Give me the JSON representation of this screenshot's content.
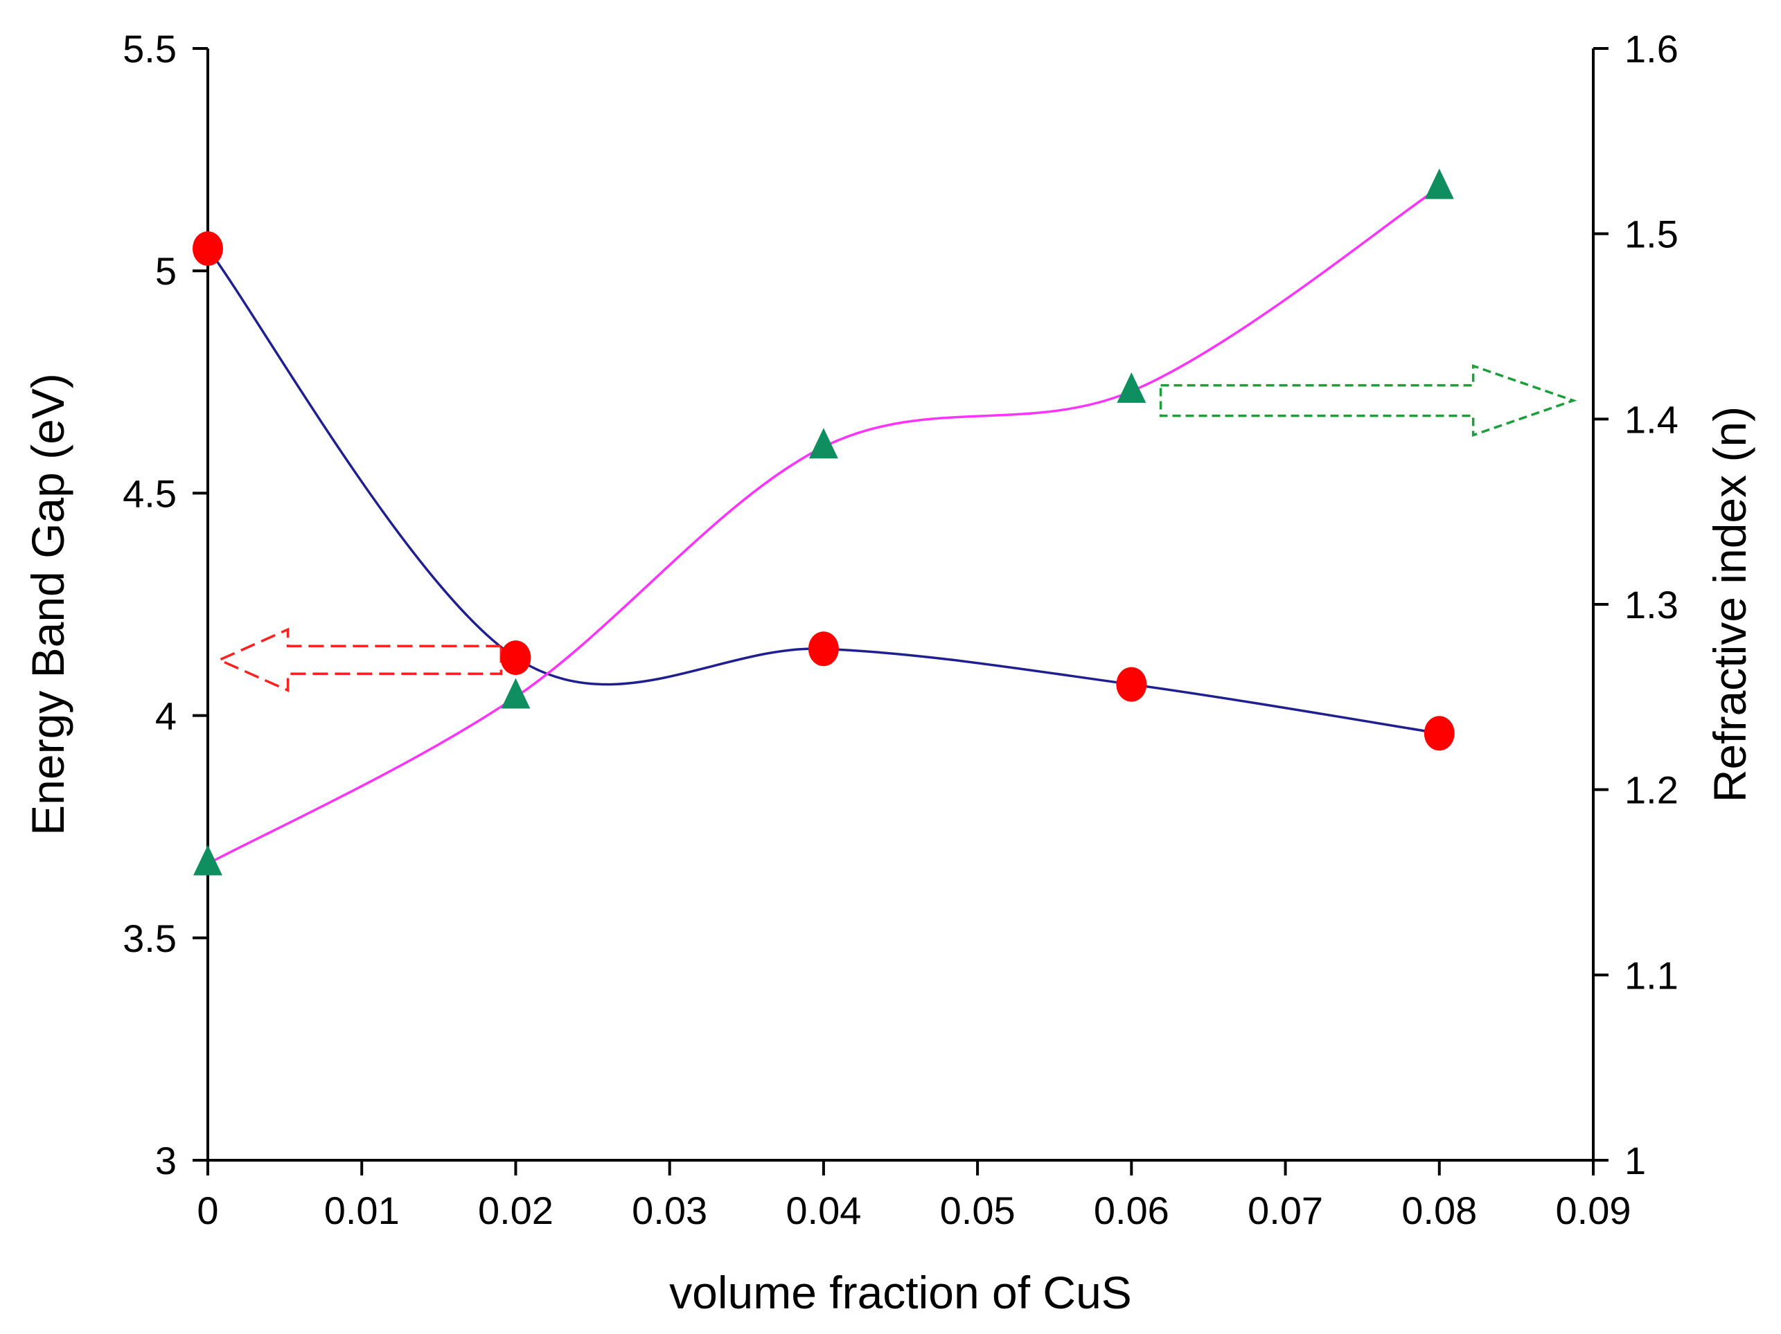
{
  "chart_data": {
    "type": "line",
    "title": "",
    "xlabel": "volume fraction of CuS",
    "ylabel_left": "Energy Band Gap (eV)",
    "ylabel_right": "Refractive index (n)",
    "xlim": [
      0,
      0.09
    ],
    "ylim_left": [
      3,
      5.5
    ],
    "ylim_right": [
      1,
      1.6
    ],
    "x_ticks": [
      0,
      0.01,
      0.02,
      0.03,
      0.04,
      0.05,
      0.06,
      0.07,
      0.08,
      0.09
    ],
    "x_tick_labels": [
      "0",
      "0.01",
      "0.02",
      "0.03",
      "0.04",
      "0.05",
      "0.06",
      "0.07",
      "0.08",
      "0.09"
    ],
    "y_left_ticks": [
      3,
      3.5,
      4,
      4.5,
      5,
      5.5
    ],
    "y_left_tick_labels": [
      "3",
      "3.5",
      "4",
      "4.5",
      "5",
      "5.5"
    ],
    "y_right_ticks": [
      1,
      1.1,
      1.2,
      1.3,
      1.4,
      1.5,
      1.6
    ],
    "y_right_tick_labels": [
      "1",
      "1.1",
      "1.2",
      "1.3",
      "1.4",
      "1.5",
      "1.6"
    ],
    "grid": false,
    "series": [
      {
        "name": "Energy Band Gap",
        "axis": "left",
        "marker": "circle",
        "marker_color": "#ff0000",
        "line_color": "#1f1f8f",
        "x": [
          0,
          0.02,
          0.04,
          0.06,
          0.08
        ],
        "values": [
          5.05,
          4.13,
          4.15,
          4.07,
          3.96
        ]
      },
      {
        "name": "Refractive index",
        "axis": "right",
        "marker": "triangle",
        "marker_color": "#0f8f5f",
        "line_color": "#ff33ff",
        "x": [
          0,
          0.02,
          0.04,
          0.06,
          0.08
        ],
        "values": [
          1.16,
          1.25,
          1.385,
          1.415,
          1.525
        ]
      }
    ],
    "annotations": [
      {
        "type": "arrow",
        "direction": "left",
        "color": "#ff2020",
        "style": "dashed",
        "meaning": "points to left axis"
      },
      {
        "type": "arrow",
        "direction": "right",
        "color": "#1a9f3a",
        "style": "dashed",
        "meaning": "points to right axis"
      }
    ]
  }
}
